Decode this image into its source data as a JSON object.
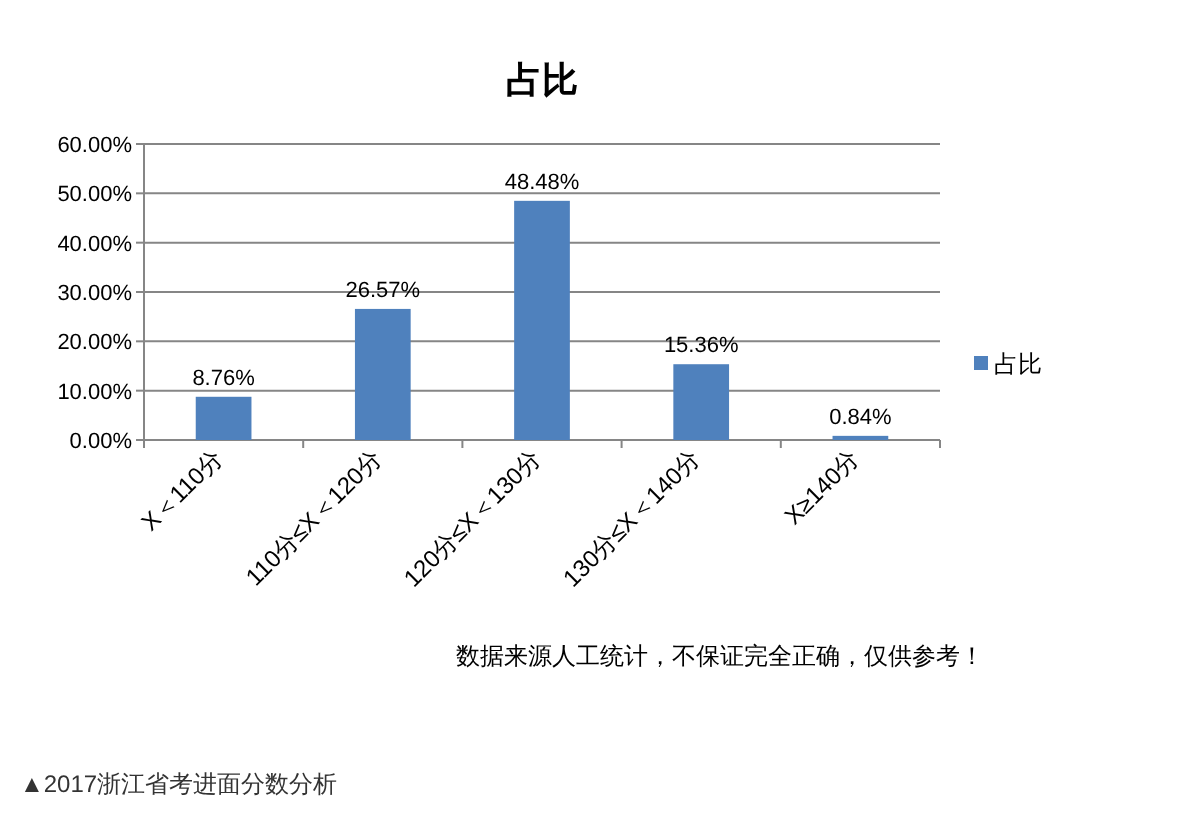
{
  "chart_data": {
    "type": "bar",
    "title": "占比",
    "categories": [
      "X＜110分",
      "110分≤X＜120分",
      "120分≤X＜130分",
      "130分≤X＜140分",
      "X≥140分"
    ],
    "series": [
      {
        "name": "占比",
        "color": "#4f81bd",
        "values": [
          8.76,
          26.57,
          48.48,
          15.36,
          0.84
        ]
      }
    ],
    "value_labels": [
      "8.76%",
      "26.57%",
      "48.48%",
      "15.36%",
      "0.84%"
    ],
    "ylim": [
      0,
      60
    ],
    "yticks": [
      {
        "value": 0,
        "label": "0.00%"
      },
      {
        "value": 10,
        "label": "10.00%"
      },
      {
        "value": 20,
        "label": "20.00%"
      },
      {
        "value": 30,
        "label": "30.00%"
      },
      {
        "value": 40,
        "label": "40.00%"
      },
      {
        "value": 50,
        "label": "50.00%"
      },
      {
        "value": 60,
        "label": "60.00%"
      }
    ],
    "grid": "y",
    "legend": "right",
    "annotations": [
      "数据来源人工统计，不保证完全正确，仅供参考！",
      "▲2017浙江省考进面分数分析"
    ]
  }
}
